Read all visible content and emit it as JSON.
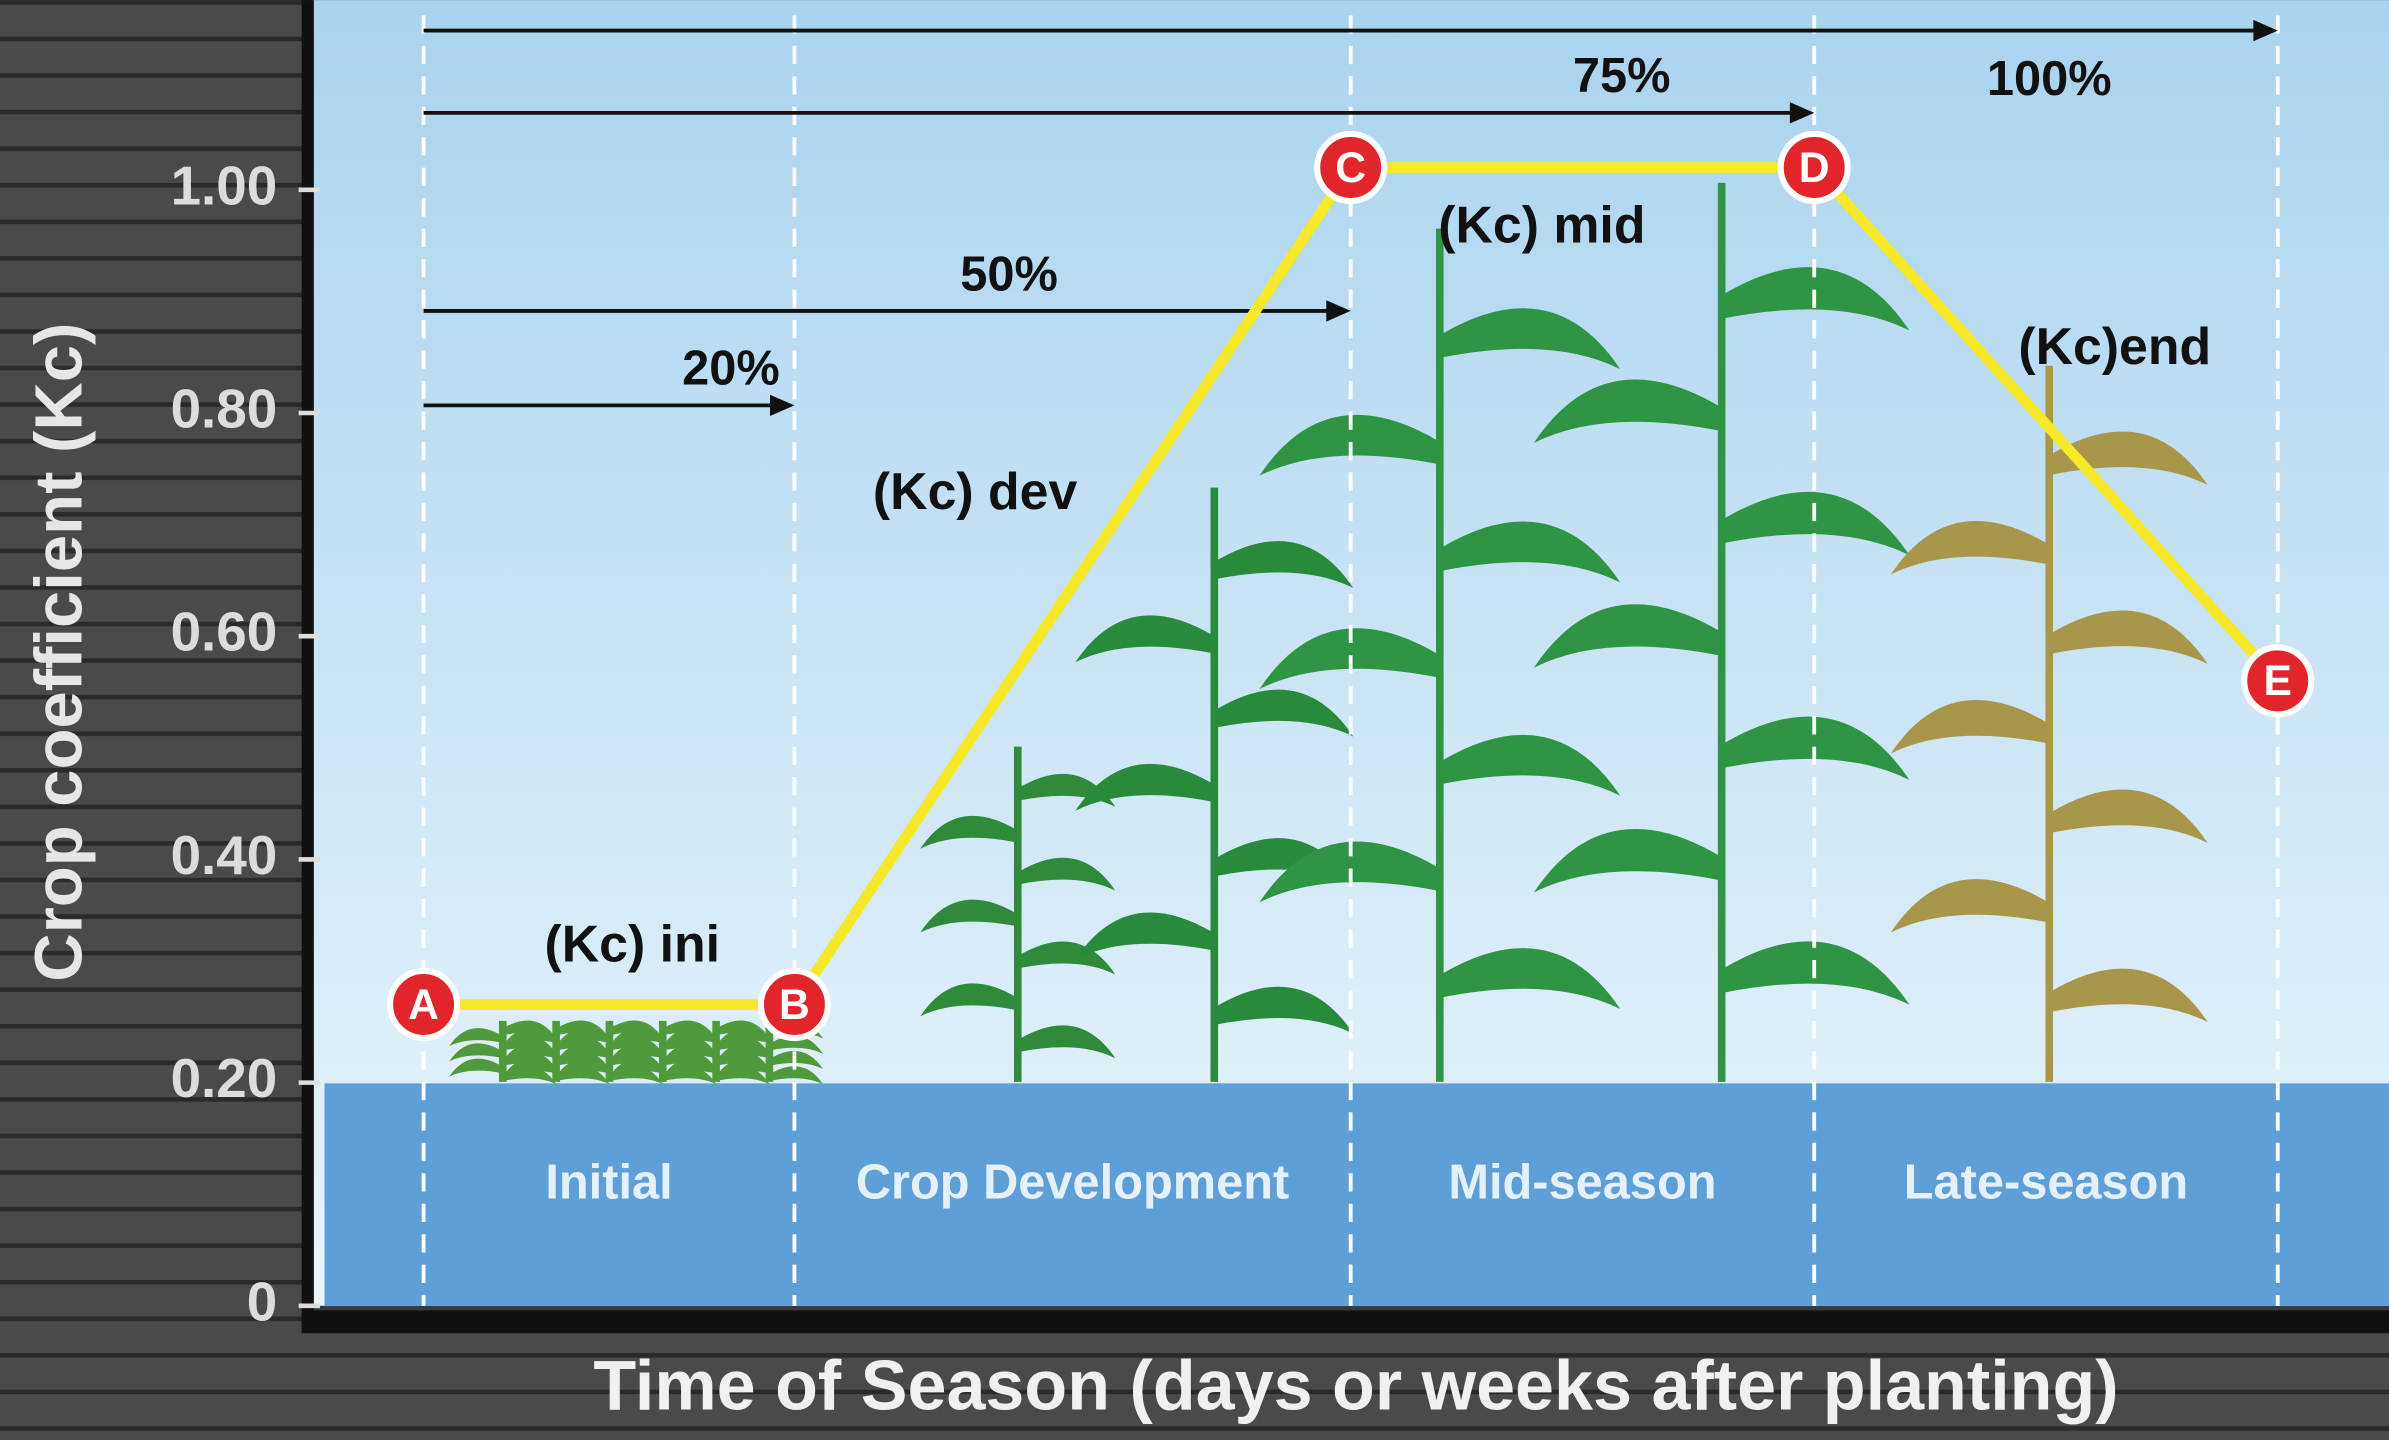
{
  "chart_data": {
    "type": "line",
    "y_label": "Crop coefficient (Kc)",
    "x_label": "Time of Season (days or weeks after planting)",
    "x": [
      0,
      20,
      50,
      75,
      100
    ],
    "x_labels": [
      null,
      "20%",
      "50%",
      "75%",
      "100%"
    ],
    "xlim": [
      -6,
      106
    ],
    "series": [
      {
        "color": "#f5e92a",
        "values": [
          0.27,
          0.27,
          1.02,
          1.02,
          0.56
        ],
        "point_labels": [
          "A",
          "B",
          "C",
          "D",
          "E"
        ]
      }
    ],
    "ylim": [
      0,
      1.17
    ],
    "yticks": [
      0,
      {
        "value": 0.2,
        "label": "0.20"
      },
      {
        "value": 0.4,
        "label": "0.40"
      },
      {
        "value": 0.6,
        "label": "0.60"
      },
      {
        "value": 0.8,
        "label": "0.80"
      },
      {
        "value": 1,
        "label": "1.00"
      }
    ],
    "stages": [
      "Initial",
      "Crop Development",
      "Mid-season",
      "Late-season"
    ],
    "annotations": [
      "(Kc) ini",
      "(Kc) dev",
      "(Kc) mid",
      "(Kc)end"
    ]
  }
}
